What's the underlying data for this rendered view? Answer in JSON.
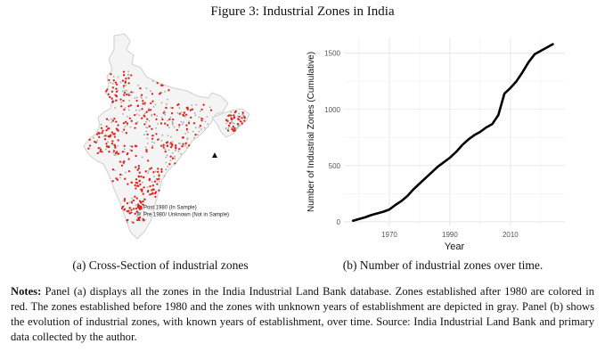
{
  "figure": {
    "title": "Figure 3: Industrial Zones in India"
  },
  "panel_a": {
    "caption": "(a) Cross-Section of industrial zones",
    "legend": [
      {
        "label": "Post 1980 (In Sample)",
        "color": "#e0201b"
      },
      {
        "label": "Pre 1980/ Unknown (Not in Sample)",
        "color": "#9a9a9a"
      }
    ]
  },
  "panel_b": {
    "caption": "(b) Number of industrial zones over time."
  },
  "notes": {
    "label": "Notes:",
    "text": " Panel (a) displays all the zones in the India Industrial Land Bank database. Zones established after 1980 are colored in red. The zones established before 1980 and the zones with unknown years of establishment are depicted in gray. Panel (b) shows the evolution of industrial zones, with known years of establishment, over time. Source: India Industrial Land Bank and primary data collected by the author."
  },
  "chart_data": {
    "type": "line",
    "xlabel": "Year",
    "ylabel": "Number of Industrial Zones (Cumulative)",
    "xlim": [
      1955,
      2028
    ],
    "ylim": [
      -40,
      1640
    ],
    "xticks": [
      1970,
      1990,
      2010
    ],
    "yticks": [
      0,
      500,
      1000,
      1500
    ],
    "grid": true,
    "series": [
      {
        "color": "#000000",
        "x": [
          1958,
          1960,
          1962,
          1964,
          1966,
          1968,
          1970,
          1972,
          1974,
          1976,
          1978,
          1980,
          1982,
          1984,
          1986,
          1988,
          1990,
          1992,
          1994,
          1996,
          1998,
          2000,
          2002,
          2004,
          2006,
          2008,
          2010,
          2012,
          2014,
          2016,
          2018,
          2020,
          2022,
          2024
        ],
        "y": [
          10,
          25,
          40,
          60,
          75,
          90,
          110,
          150,
          185,
          230,
          290,
          340,
          390,
          440,
          490,
          530,
          570,
          620,
          680,
          730,
          770,
          800,
          840,
          870,
          950,
          1140,
          1190,
          1250,
          1330,
          1420,
          1490,
          1520,
          1550,
          1580
        ]
      }
    ]
  }
}
